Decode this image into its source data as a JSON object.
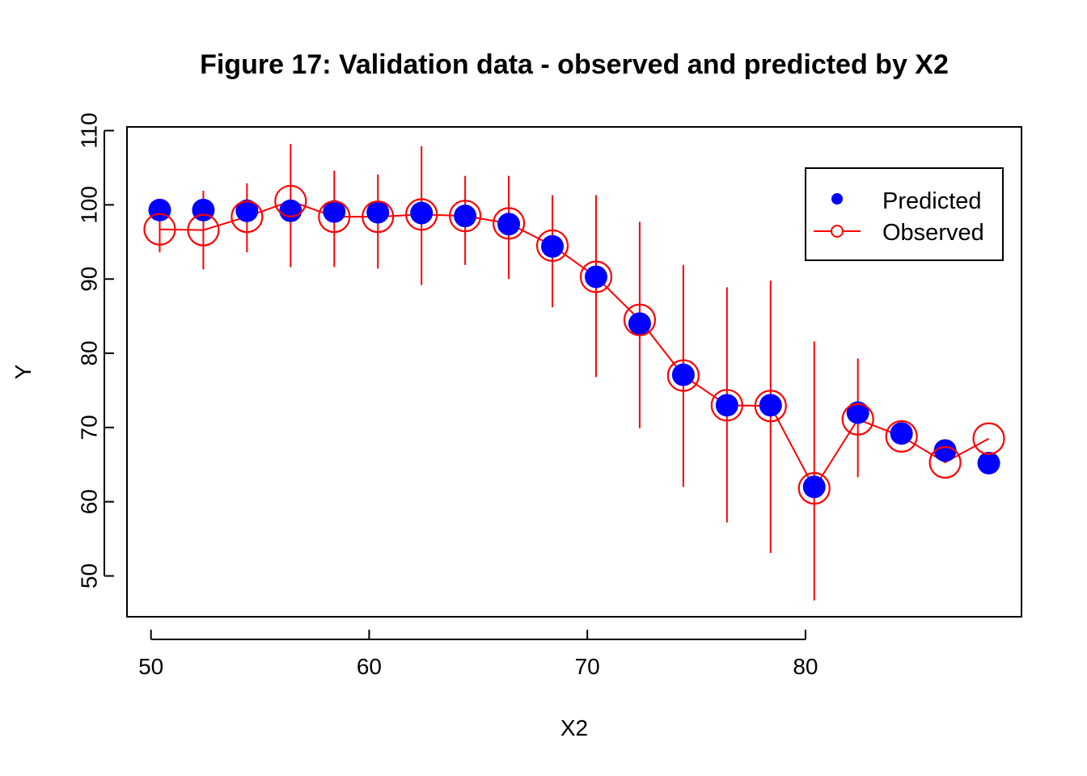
{
  "chart_data": {
    "type": "scatter",
    "title": "Figure 17: Validation data - observed and predicted by X2",
    "xlabel": "X2",
    "ylabel": "Y",
    "xlim": [
      48.9,
      89.9
    ],
    "ylim": [
      44.5,
      110.5
    ],
    "x_ticks": [
      50,
      60,
      70,
      80
    ],
    "y_ticks": [
      50,
      60,
      70,
      80,
      90,
      100,
      110
    ],
    "legend": {
      "position": "top-right",
      "entries": [
        {
          "label": "Predicted",
          "color": "#0000ff",
          "marker": "filled-circle",
          "line": false
        },
        {
          "label": "Observed",
          "color": "#ff0000",
          "marker": "open-circle",
          "line": true
        }
      ]
    },
    "colors": {
      "predicted": "#0000ff",
      "observed": "#ff0000",
      "error_bars": "#ff0000"
    },
    "x": [
      50.4,
      52.4,
      54.4,
      56.4,
      58.4,
      60.4,
      62.4,
      64.4,
      66.4,
      68.4,
      70.4,
      72.4,
      74.4,
      76.4,
      78.4,
      80.4,
      82.4,
      84.4,
      86.4,
      88.4
    ],
    "series": [
      {
        "name": "Predicted",
        "type": "points",
        "values": [
          99.3,
          99.3,
          99.2,
          99.2,
          99.1,
          99.0,
          98.9,
          98.5,
          97.4,
          94.4,
          90.3,
          84.0,
          77.1,
          73.0,
          73.0,
          62.0,
          72.0,
          69.2,
          66.9,
          65.2
        ]
      },
      {
        "name": "Observed",
        "type": "line-points",
        "values": [
          96.7,
          96.6,
          98.4,
          100.5,
          98.4,
          98.4,
          98.7,
          98.5,
          97.5,
          94.5,
          90.3,
          84.5,
          77.0,
          73.0,
          72.9,
          61.8,
          71.1,
          68.8,
          65.3,
          68.5
        ],
        "error_bars": {
          "lower": [
            93.6,
            91.3,
            93.6,
            91.6,
            91.6,
            91.4,
            89.2,
            91.9,
            90.0,
            86.2,
            76.8,
            69.9,
            62.0,
            57.2,
            53.1,
            46.7,
            63.3,
            null,
            null,
            null
          ],
          "upper": [
            99.9,
            101.9,
            102.9,
            108.2,
            104.6,
            104.1,
            107.9,
            103.9,
            103.9,
            101.3,
            101.3,
            97.7,
            91.9,
            88.9,
            89.8,
            81.6,
            79.3,
            null,
            null,
            null
          ]
        }
      }
    ]
  }
}
